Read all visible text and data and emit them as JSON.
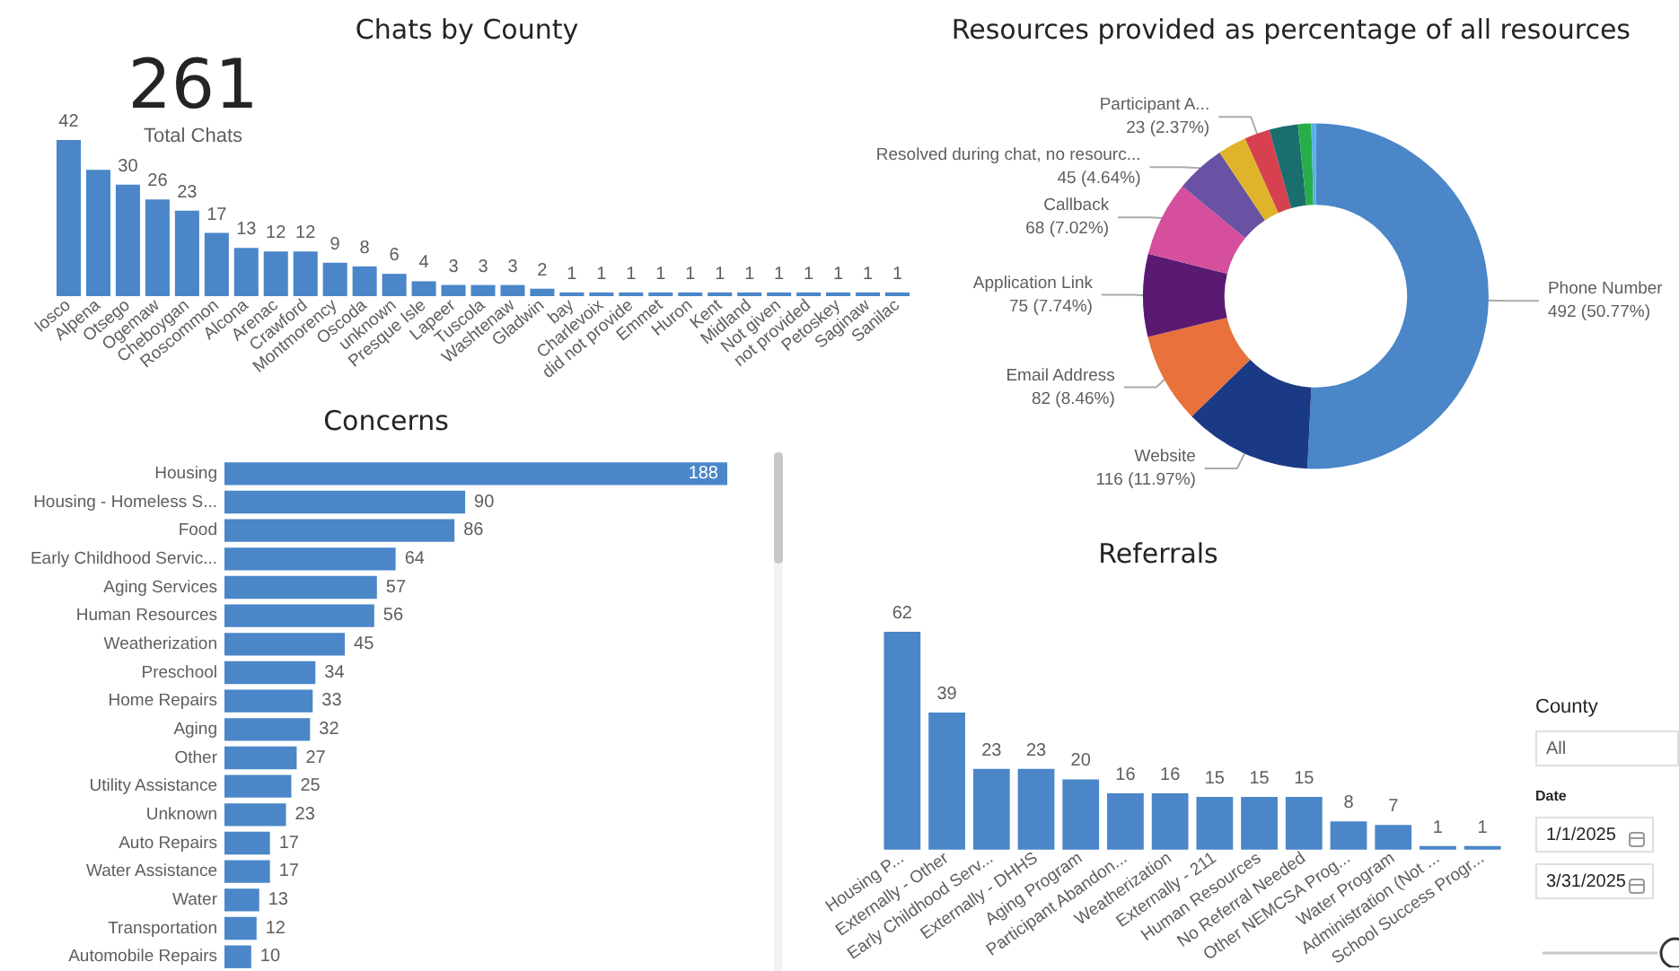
{
  "chart_data": [
    {
      "type": "bar",
      "title": "Chats by County",
      "categories": [
        "Iosco",
        "Alpena",
        "Otsego",
        "Ogemaw",
        "Cheboygan",
        "Roscommon",
        "Alcona",
        "Arenac",
        "Crawford",
        "Montmorency",
        "Oscoda",
        "unknown",
        "Presque Isle",
        "Lapeer",
        "Tuscola",
        "Washtenaw",
        "Gladwin",
        "bay",
        "Charlevoix",
        "did not provide",
        "Emmet",
        "Huron",
        "Kent",
        "Midland",
        "Not given",
        "not provided",
        "Petoskey",
        "Saginaw",
        "Sanilac"
      ],
      "values": [
        42,
        34,
        30,
        26,
        23,
        17,
        13,
        12,
        12,
        9,
        8,
        6,
        4,
        3,
        3,
        3,
        2,
        1,
        1,
        1,
        1,
        1,
        1,
        1,
        1,
        1,
        1,
        1,
        1
      ],
      "value_labels": [
        "42",
        null,
        "30",
        "26",
        "23",
        "17",
        "13",
        "12",
        "12",
        "9",
        "8",
        "6",
        "4",
        "3",
        "3",
        "3",
        "2",
        "1",
        "1",
        "1",
        "1",
        "1",
        "1",
        "1",
        "1",
        "1",
        "1",
        "1",
        "1"
      ],
      "color": "#4a86c8",
      "tick_labels": "x"
    },
    {
      "type": "other",
      "annotations": [
        "261",
        "Total Chats"
      ]
    },
    {
      "type": "donut",
      "title": "Resources provided as percentage of all resources",
      "categories": [
        "Phone Number",
        "Website",
        "Email Address",
        "Application Link",
        "Callback",
        "Resolved during chat, no resourc...",
        null,
        "Participant A...",
        null,
        null,
        null
      ],
      "values": [
        492,
        116,
        82,
        75,
        68,
        45,
        26,
        23,
        26,
        12,
        4
      ],
      "colors": [
        "#4a86c8",
        "#1b3a85",
        "#e8713c",
        "#5b1a72",
        "#d54f9d",
        "#6952a3",
        "#dfb42a",
        "#d6404f",
        "#1a6e6e",
        "#27ae4a",
        "#5ab0e8"
      ],
      "value_labels": [
        "492 (50.77%)",
        "116 (11.97%)",
        "82 (8.46%)",
        "75 (7.74%)",
        "68 (7.02%)",
        "45 (4.64%)",
        null,
        "23 (2.37%)",
        null,
        null,
        null
      ]
    },
    {
      "type": "bar",
      "title": "Concerns",
      "orientation": "horizontal",
      "categories": [
        "Housing",
        "Housing - Homeless S...",
        "Food",
        "Early Childhood Servic...",
        "Aging Services",
        "Human Resources",
        "Weatherization",
        "Preschool",
        "Home Repairs",
        "Aging",
        "Other",
        "Utility Assistance",
        "Unknown",
        "Auto Repairs",
        "Water Assistance",
        "Water",
        "Transportation",
        "Automobile Repairs"
      ],
      "values": [
        188,
        90,
        86,
        64,
        57,
        56,
        45,
        34,
        33,
        32,
        27,
        25,
        23,
        17,
        17,
        13,
        12,
        10
      ],
      "color": "#4a86c8",
      "data_labels": true,
      "tick_labels": "y"
    },
    {
      "type": "bar",
      "title": "Referrals",
      "categories": [
        "Housing P...",
        "Externally - Other",
        "Early Childhood Serv...",
        "Externally - DHHS",
        "Aging Program",
        "Participant Abandon...",
        "Weatherization",
        "Externally - 211",
        "Human Resources",
        "No Referral Needed",
        "Other NEMCSA Prog...",
        "Water Program",
        "Administration (Not ...",
        "School Success Progr..."
      ],
      "values": [
        62,
        39,
        23,
        23,
        20,
        16,
        16,
        15,
        15,
        15,
        8,
        7,
        1,
        1
      ],
      "color": "#4a86c8",
      "data_labels": true,
      "tick_labels": "x"
    },
    {
      "type": "other",
      "annotations": [
        "County",
        "All",
        "Date",
        "1/1/2025",
        "3/31/2025"
      ]
    }
  ]
}
